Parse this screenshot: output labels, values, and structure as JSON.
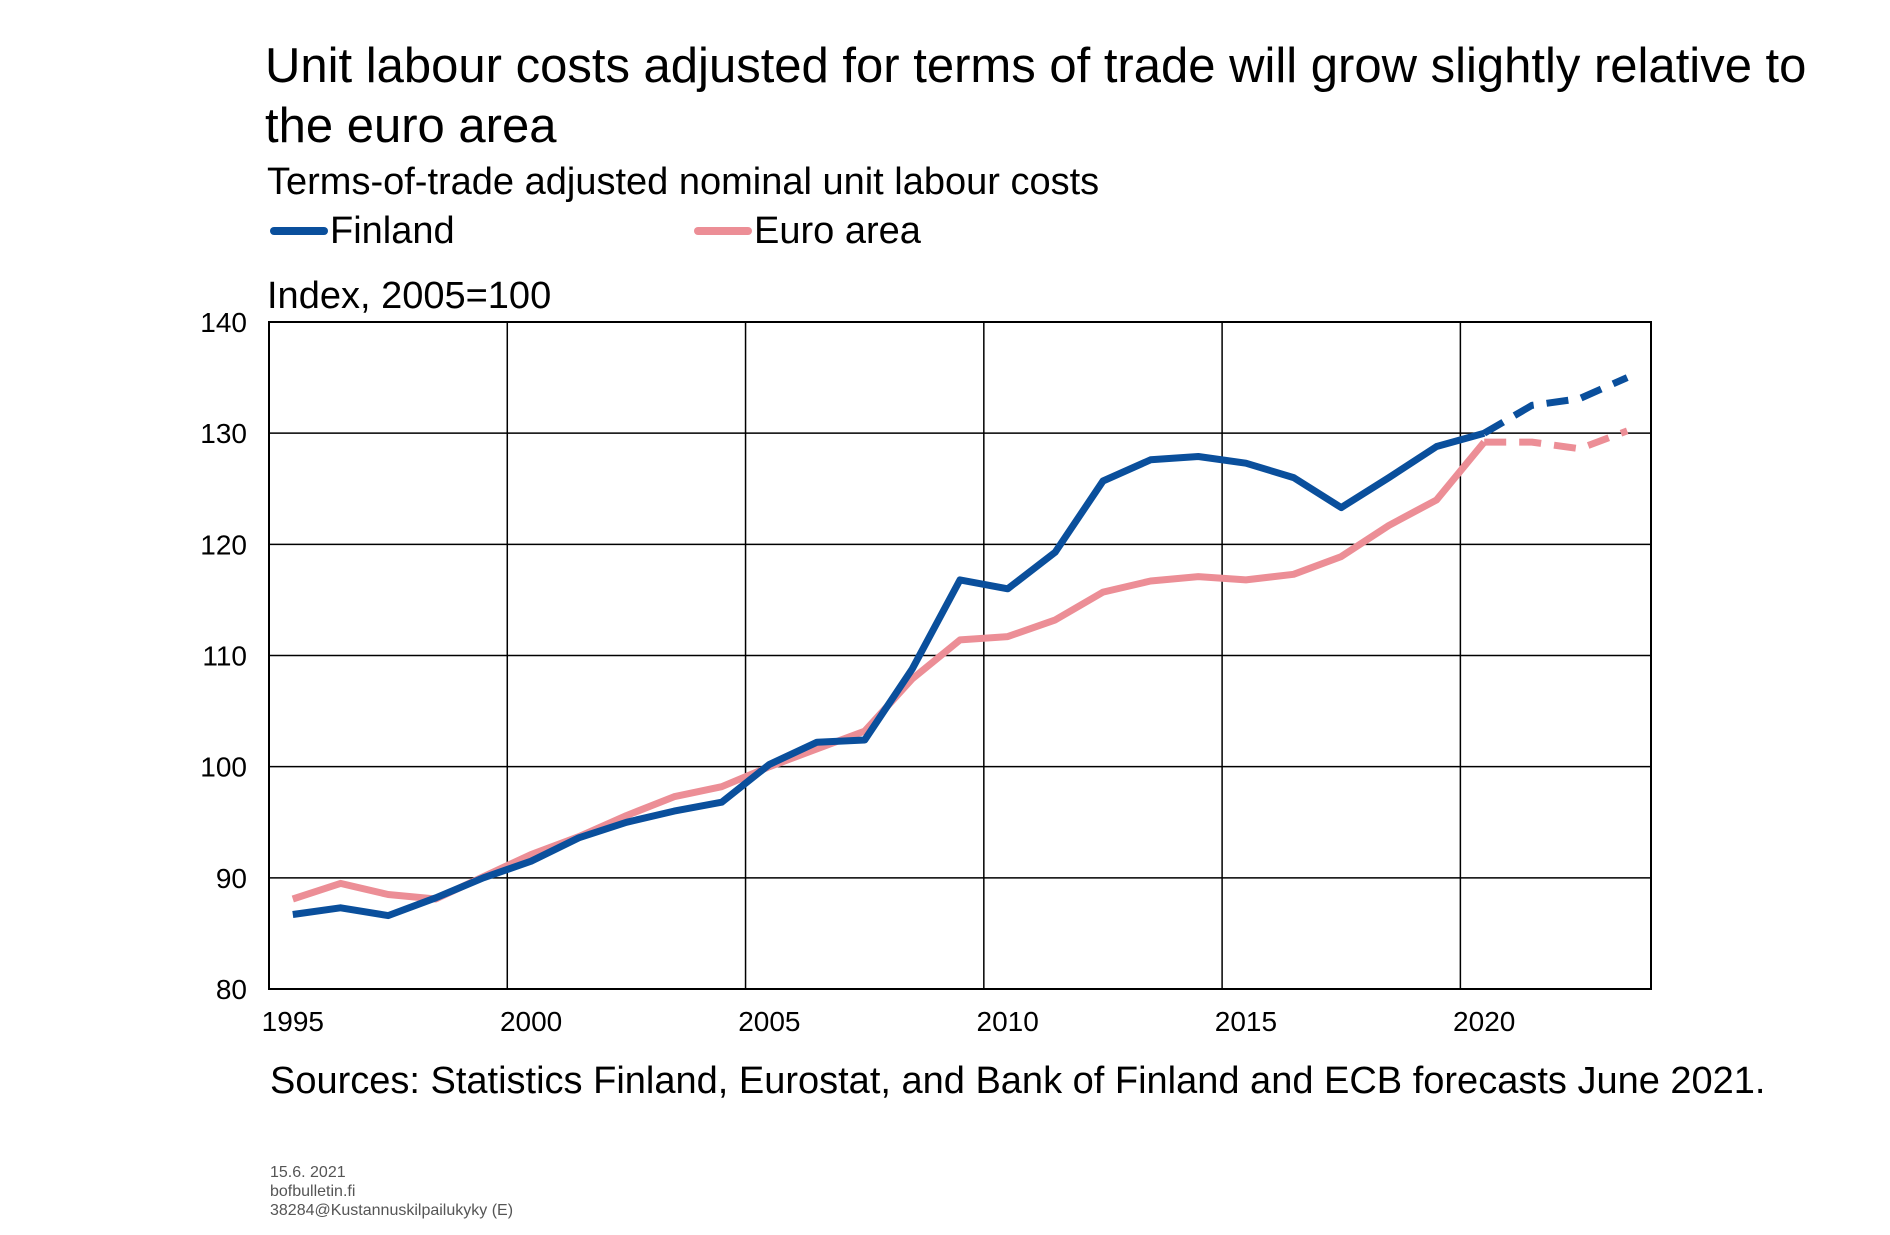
{
  "title": "Unit labour costs adjusted for terms of trade will grow slightly relative to the euro area",
  "subtitle": "Terms-of-trade adjusted nominal unit labour costs",
  "unit_label": "Index, 2005=100",
  "sources": "Sources: Statistics Finland, Eurostat, and Bank of Finland and ECB forecasts June 2021.",
  "footer": {
    "date": "15.6. 2021",
    "site": "bofbulletin.fi",
    "code": "38284@Kustannuskilpailukyky (E)"
  },
  "chart_data": {
    "type": "line",
    "x": [
      1995,
      1996,
      1997,
      1998,
      1999,
      2000,
      2001,
      2002,
      2003,
      2004,
      2005,
      2006,
      2007,
      2008,
      2009,
      2010,
      2011,
      2012,
      2013,
      2014,
      2015,
      2016,
      2017,
      2018,
      2019,
      2020,
      2021,
      2022,
      2023
    ],
    "forecast_start": 2020,
    "series": [
      {
        "name": "Finland",
        "color": "#0a4f9c",
        "values": [
          86.7,
          87.3,
          86.6,
          88.2,
          90.0,
          91.5,
          93.6,
          95.0,
          96.0,
          96.8,
          100.2,
          102.2,
          102.4,
          108.8,
          116.8,
          116.0,
          119.3,
          125.7,
          127.6,
          127.9,
          127.3,
          126.0,
          123.3,
          126.0,
          128.8,
          130.0,
          132.5,
          133.1,
          135.0
        ]
      },
      {
        "name": "Euro area",
        "color": "#ec8e96",
        "values": [
          88.1,
          89.5,
          88.5,
          88.1,
          90.1,
          92.1,
          93.7,
          95.6,
          97.3,
          98.2,
          100.0,
          101.6,
          103.2,
          107.9,
          111.4,
          111.7,
          113.2,
          115.7,
          116.7,
          117.1,
          116.8,
          117.3,
          118.9,
          121.7,
          124.0,
          129.2,
          129.2,
          128.6,
          130.2
        ]
      }
    ],
    "ylim": [
      80,
      140
    ],
    "yticks": [
      80,
      90,
      100,
      110,
      120,
      130,
      140
    ],
    "xticks": [
      1995,
      2000,
      2005,
      2010,
      2015,
      2020
    ],
    "grid": true,
    "legend_position": "top"
  }
}
